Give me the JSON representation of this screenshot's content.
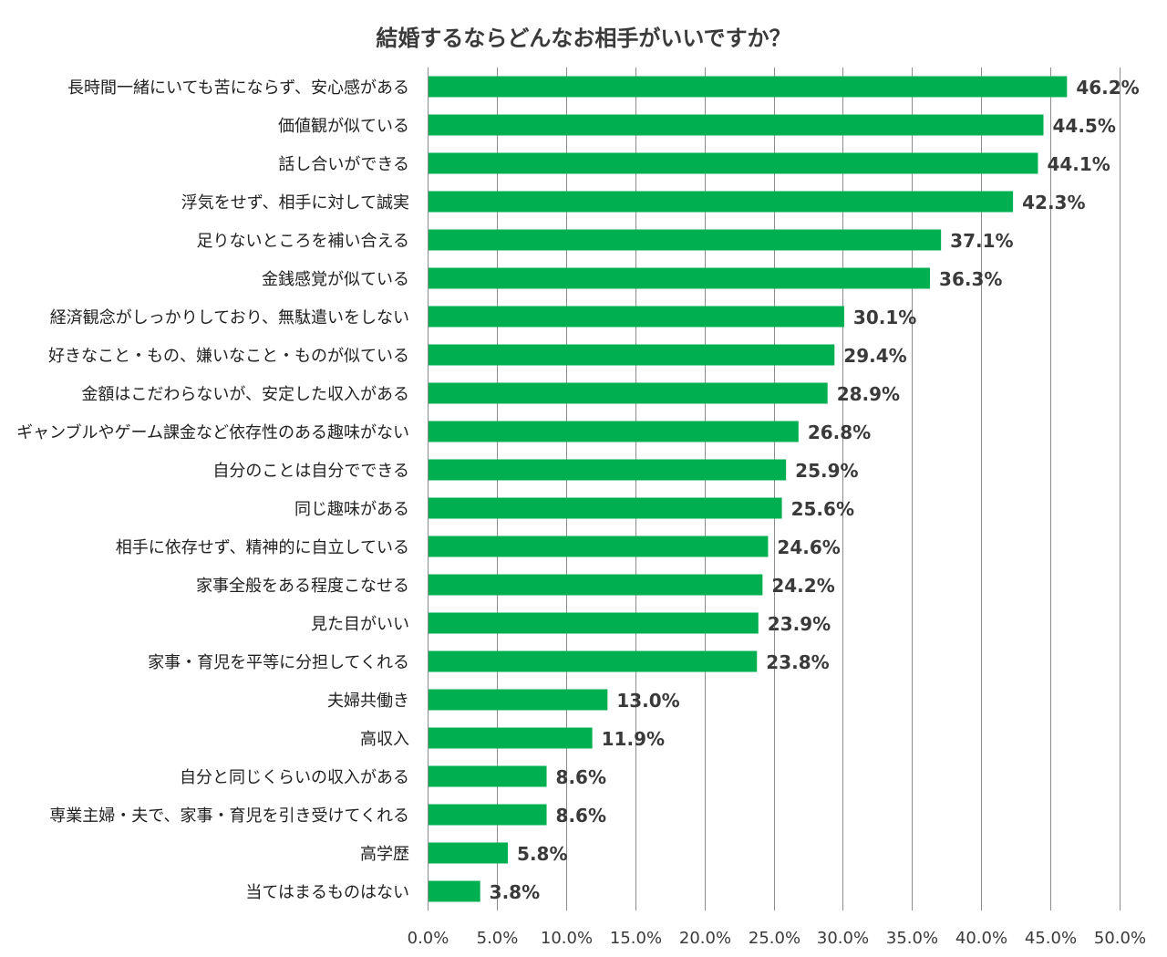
{
  "chart_data": {
    "type": "bar",
    "orientation": "horizontal",
    "title": "結婚するならどんなお相手がいいですか？",
    "categories": [
      "長時間一緒にいても苦にならず、安心感がある",
      "価値観が似ている",
      "話し合いができる",
      "浮気をせず、相手に対して誠実",
      "足りないところを補い合える",
      "金銭感覚が似ている",
      "経済観念がしっかりしており、無駄遣いをしない",
      "好きなこと・もの、嫌いなこと・ものが似ている",
      "金額はこだわらないが、安定した収入がある",
      "ギャンブルやゲーム課金など依存性のある趣味がない",
      "自分のことは自分でできる",
      "同じ趣味がある",
      "相手に依存せず、精神的に自立している",
      "家事全般をある程度こなせる",
      "見た目がいい",
      "家事・育児を平等に分担してくれる",
      "夫婦共働き",
      "高収入",
      "自分と同じくらいの収入がある",
      "専業主婦・夫で、家事・育児を引き受けてくれる",
      "高学歴",
      "当てはまるものはない"
    ],
    "values": [
      46.2,
      44.5,
      44.1,
      42.3,
      37.1,
      36.3,
      30.1,
      29.4,
      28.9,
      26.8,
      25.9,
      25.6,
      24.6,
      24.2,
      23.9,
      23.8,
      13.0,
      11.9,
      8.6,
      8.6,
      5.8,
      3.8
    ],
    "value_labels": [
      "46.2%",
      "44.5%",
      "44.1%",
      "42.3%",
      "37.1%",
      "36.3%",
      "30.1%",
      "29.4%",
      "28.9%",
      "26.8%",
      "25.9%",
      "25.6%",
      "24.6%",
      "24.2%",
      "23.9%",
      "23.8%",
      "13.0%",
      "11.9%",
      "8.6%",
      "8.6%",
      "5.8%",
      "3.8%"
    ],
    "x_ticks": [
      "0.0%",
      "5.0%",
      "10.0%",
      "15.0%",
      "20.0%",
      "25.0%",
      "30.0%",
      "35.0%",
      "40.0%",
      "45.0%",
      "50.0%"
    ],
    "xlim": [
      0,
      50
    ],
    "xlabel": "",
    "ylabel": "",
    "grid": true,
    "legend": "none",
    "bar_color": "#00b050"
  }
}
